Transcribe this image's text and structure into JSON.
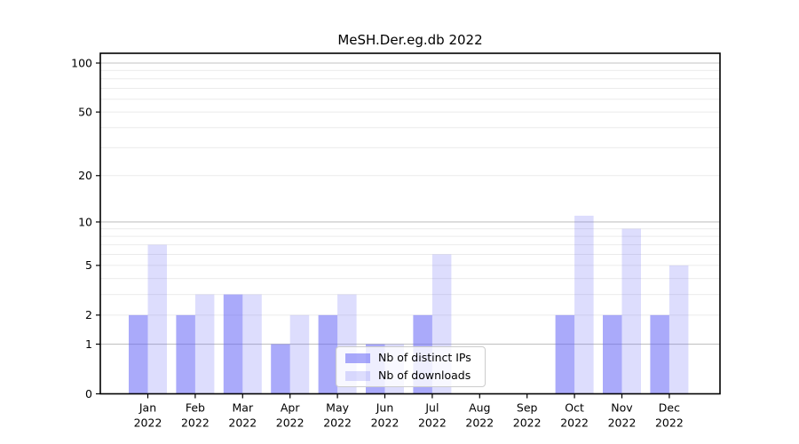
{
  "title": "MeSH.Der.eg.db 2022",
  "colors": {
    "ips_bar": "rgba(100,100,245,0.55)",
    "downloads_bar": "rgba(100,100,245,0.22)",
    "grid_major": "#c3c3c3",
    "grid_minor": "#ebebeb",
    "axis": "#000000",
    "legend_border": "#cccccc",
    "legend_bg": "rgba(255,255,255,0.8)"
  },
  "legend": {
    "items": [
      {
        "label": "Nb of distinct IPs"
      },
      {
        "label": "Nb of downloads"
      }
    ]
  },
  "chart_data": {
    "type": "bar",
    "title": "MeSH.Der.eg.db 2022",
    "y_scale": "log10(1+x)",
    "grid": true,
    "legend_position": "lower center-right inside",
    "months": [
      "Jan",
      "Feb",
      "Mar",
      "Apr",
      "May",
      "Jun",
      "Jul",
      "Aug",
      "Sep",
      "Oct",
      "Nov",
      "Dec"
    ],
    "year": "2022",
    "categories": [
      "Jan 2022",
      "Feb 2022",
      "Mar 2022",
      "Apr 2022",
      "May 2022",
      "Jun 2022",
      "Jul 2022",
      "Aug 2022",
      "Sep 2022",
      "Oct 2022",
      "Nov 2022",
      "Dec 2022"
    ],
    "series": [
      {
        "name": "Nb of distinct IPs",
        "values": [
          2,
          2,
          3,
          1,
          2,
          1,
          2,
          0,
          0,
          2,
          2,
          2
        ]
      },
      {
        "name": "Nb of downloads",
        "values": [
          7,
          3,
          3,
          2,
          3,
          1,
          6,
          0,
          0,
          11,
          9,
          5
        ]
      }
    ],
    "yticks": [
      0,
      1,
      2,
      5,
      10,
      20,
      50,
      100
    ],
    "grid_major_at": [
      1,
      10,
      100
    ],
    "grid_minor_at": [
      2,
      3,
      4,
      5,
      6,
      7,
      8,
      9,
      20,
      30,
      40,
      50,
      60,
      70,
      80,
      90
    ],
    "ylim": [
      0,
      100
    ]
  }
}
